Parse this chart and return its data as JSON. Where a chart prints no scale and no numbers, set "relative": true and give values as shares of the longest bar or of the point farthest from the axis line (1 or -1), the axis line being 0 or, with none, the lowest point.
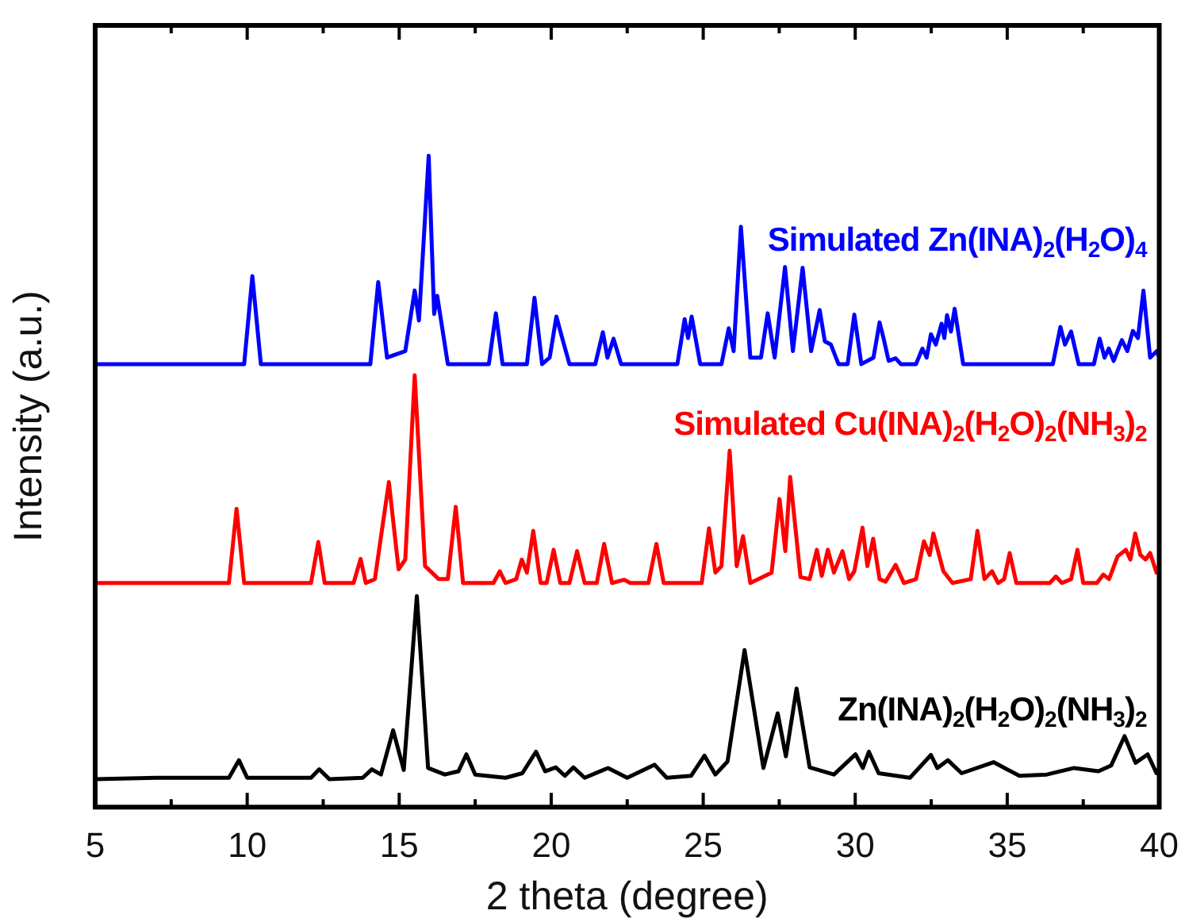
{
  "chart_data": {
    "type": "line",
    "relative": true,
    "xlabel": "2 theta (degree)",
    "ylabel": "Intensity (a.u.)",
    "marker": "none",
    "line_style": "solid",
    "grid": false,
    "xlim": [
      5,
      40
    ],
    "xticks": [
      5,
      {
        "value": 7.5,
        "label": null
      },
      10,
      {
        "value": 12.5,
        "label": null
      },
      15,
      {
        "value": 17.5,
        "label": null
      },
      20,
      {
        "value": 22.5,
        "label": null
      },
      25,
      {
        "value": 27.5,
        "label": null
      },
      30,
      {
        "value": 32.5,
        "label": null
      },
      35,
      {
        "value": 37.5,
        "label": null
      },
      40
    ],
    "series": [
      {
        "name": "Simulated Zn(INA)$_{2}$(H$_{2}$O)$_{4}$",
        "color": "#0000ff",
        "x": [
          5,
          9.9,
          10.17,
          10.45,
          14.05,
          14.31,
          14.6,
          15.2,
          15.51,
          15.65,
          15.97,
          16.15,
          16.25,
          16.6,
          17.95,
          18.18,
          18.4,
          19.2,
          19.45,
          19.7,
          19.95,
          20.17,
          20.38,
          20.6,
          21.45,
          21.7,
          21.85,
          22.05,
          22.3,
          24.15,
          24.39,
          24.5,
          24.62,
          24.9,
          25.6,
          25.84,
          26.0,
          26.24,
          26.55,
          26.9,
          27.12,
          27.35,
          27.69,
          27.95,
          28.27,
          28.55,
          28.83,
          29.0,
          29.2,
          29.45,
          29.75,
          29.97,
          30.2,
          30.6,
          30.8,
          30.94,
          31.1,
          31.33,
          31.5,
          32.0,
          32.21,
          32.35,
          32.49,
          32.65,
          32.84,
          32.93,
          33.02,
          33.15,
          33.27,
          33.55,
          36.5,
          36.75,
          36.9,
          37.1,
          37.35,
          37.85,
          38.04,
          38.2,
          38.34,
          38.5,
          38.77,
          38.95,
          39.13,
          39.3,
          39.48,
          39.7,
          39.92,
          40
        ],
        "values": [
          0.68,
          0.68,
          0.815,
          0.68,
          0.68,
          0.806,
          0.69,
          0.7,
          0.793,
          0.747,
          1.0,
          0.757,
          0.785,
          0.68,
          0.68,
          0.758,
          0.68,
          0.68,
          0.782,
          0.68,
          0.69,
          0.753,
          0.717,
          0.68,
          0.68,
          0.729,
          0.69,
          0.719,
          0.68,
          0.68,
          0.749,
          0.72,
          0.753,
          0.68,
          0.68,
          0.735,
          0.7,
          0.891,
          0.69,
          0.69,
          0.758,
          0.69,
          0.829,
          0.7,
          0.828,
          0.7,
          0.763,
          0.715,
          0.71,
          0.68,
          0.68,
          0.756,
          0.68,
          0.69,
          0.744,
          0.718,
          0.685,
          0.689,
          0.68,
          0.68,
          0.704,
          0.69,
          0.726,
          0.71,
          0.742,
          0.72,
          0.755,
          0.73,
          0.765,
          0.68,
          0.68,
          0.737,
          0.71,
          0.73,
          0.68,
          0.68,
          0.719,
          0.69,
          0.704,
          0.685,
          0.717,
          0.7,
          0.731,
          0.72,
          0.793,
          0.69,
          0.7,
          0.69
        ]
      },
      {
        "name": "Simulated Cu(INA)$_{2}$(H$_{2}$O)$_{2}$(NH$_{3}$)$_{2}$",
        "color": "#ff0000",
        "x": [
          5,
          9.4,
          9.65,
          9.9,
          12.1,
          12.34,
          12.55,
          13.5,
          13.73,
          13.9,
          14.2,
          14.66,
          14.98,
          15.2,
          15.51,
          15.85,
          16.3,
          16.6,
          16.86,
          17.1,
          18.1,
          18.31,
          18.5,
          18.85,
          19.03,
          19.2,
          19.41,
          19.65,
          19.85,
          20.08,
          20.3,
          20.6,
          20.85,
          21.1,
          21.5,
          21.74,
          22.0,
          22.4,
          22.6,
          23.2,
          23.46,
          23.7,
          24.95,
          25.19,
          25.4,
          25.6,
          25.87,
          26.1,
          26.31,
          26.55,
          27.25,
          27.51,
          27.7,
          27.86,
          28.2,
          28.5,
          28.74,
          28.9,
          29.1,
          29.3,
          29.58,
          29.8,
          29.97,
          30.24,
          30.4,
          30.59,
          30.8,
          31.0,
          31.33,
          31.6,
          32.0,
          32.26,
          32.45,
          32.57,
          32.9,
          33.2,
          33.8,
          34.02,
          34.25,
          34.5,
          34.7,
          34.9,
          35.08,
          35.3,
          36.4,
          36.6,
          36.8,
          37.1,
          37.31,
          37.5,
          37.95,
          38.16,
          38.35,
          38.63,
          38.9,
          39.05,
          39.21,
          39.38,
          39.55,
          39.7,
          39.91,
          40
        ],
        "values": [
          0.344,
          0.344,
          0.458,
          0.344,
          0.344,
          0.407,
          0.344,
          0.344,
          0.381,
          0.344,
          0.35,
          0.499,
          0.365,
          0.38,
          0.663,
          0.37,
          0.35,
          0.35,
          0.461,
          0.344,
          0.344,
          0.362,
          0.344,
          0.35,
          0.38,
          0.36,
          0.424,
          0.344,
          0.344,
          0.395,
          0.344,
          0.344,
          0.393,
          0.344,
          0.344,
          0.404,
          0.344,
          0.349,
          0.344,
          0.344,
          0.404,
          0.344,
          0.344,
          0.428,
          0.36,
          0.37,
          0.547,
          0.37,
          0.416,
          0.344,
          0.36,
          0.473,
          0.393,
          0.507,
          0.353,
          0.35,
          0.395,
          0.355,
          0.395,
          0.36,
          0.393,
          0.35,
          0.362,
          0.429,
          0.37,
          0.412,
          0.35,
          0.346,
          0.372,
          0.344,
          0.35,
          0.408,
          0.387,
          0.42,
          0.362,
          0.344,
          0.35,
          0.424,
          0.35,
          0.362,
          0.344,
          0.35,
          0.39,
          0.344,
          0.344,
          0.354,
          0.344,
          0.35,
          0.395,
          0.344,
          0.344,
          0.357,
          0.35,
          0.385,
          0.395,
          0.38,
          0.42,
          0.387,
          0.38,
          0.39,
          0.36,
          0.37
        ]
      },
      {
        "name": "Zn(INA)$_{2}$(H$_{2}$O)$_{2}$(NH$_{3}$)$_{2}$",
        "color": "#000000",
        "x": [
          5,
          7,
          9.4,
          9.73,
          10.0,
          12.1,
          12.37,
          12.7,
          13.8,
          14.1,
          14.4,
          14.8,
          15.15,
          15.58,
          15.95,
          16.5,
          16.95,
          17.21,
          17.5,
          18.5,
          19.05,
          19.5,
          19.8,
          20.15,
          20.45,
          20.73,
          21.1,
          21.87,
          22.5,
          23.4,
          23.8,
          24.6,
          25.04,
          25.4,
          25.8,
          26.36,
          26.98,
          27.45,
          27.72,
          28.07,
          28.5,
          29.3,
          30.01,
          30.25,
          30.45,
          30.77,
          31.8,
          32.49,
          32.7,
          33.05,
          33.5,
          34.55,
          35.4,
          36.3,
          37.2,
          38.0,
          38.42,
          38.86,
          39.22,
          39.62,
          39.91,
          40
        ],
        "values": [
          0.043,
          0.045,
          0.045,
          0.072,
          0.045,
          0.045,
          0.058,
          0.043,
          0.045,
          0.058,
          0.05,
          0.118,
          0.057,
          0.324,
          0.06,
          0.05,
          0.055,
          0.081,
          0.05,
          0.045,
          0.052,
          0.085,
          0.055,
          0.061,
          0.048,
          0.061,
          0.045,
          0.06,
          0.045,
          0.065,
          0.045,
          0.048,
          0.079,
          0.05,
          0.07,
          0.241,
          0.06,
          0.144,
          0.078,
          0.182,
          0.061,
          0.05,
          0.081,
          0.06,
          0.085,
          0.052,
          0.045,
          0.08,
          0.06,
          0.072,
          0.052,
          0.069,
          0.048,
          0.05,
          0.06,
          0.055,
          0.064,
          0.109,
          0.068,
          0.081,
          0.052,
          0.06
        ]
      }
    ]
  }
}
